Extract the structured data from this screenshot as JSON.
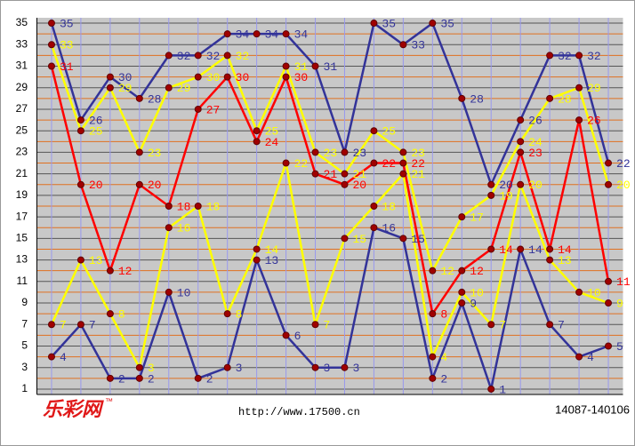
{
  "chart_data": {
    "type": "line",
    "categories": [
      null,
      null,
      null,
      null,
      null,
      null,
      null,
      null,
      null,
      null,
      null,
      null,
      null,
      null,
      null,
      null,
      null,
      null,
      null,
      null
    ],
    "series": [
      {
        "color": "#333399",
        "values": [
          35,
          26,
          30,
          28,
          32,
          32,
          34,
          34,
          34,
          31,
          23,
          35,
          33,
          35,
          28,
          20,
          26,
          32,
          32,
          22
        ]
      },
      {
        "color": "#ffff00",
        "values": [
          33,
          25,
          29,
          23,
          29,
          30,
          32,
          25,
          31,
          23,
          21,
          25,
          23,
          12,
          17,
          19,
          24,
          28,
          29,
          20
        ]
      },
      {
        "color": "#ff0000",
        "values": [
          31,
          20,
          12,
          20,
          18,
          27,
          30,
          24,
          30,
          21,
          20,
          22,
          22,
          8,
          12,
          14,
          23,
          14,
          26,
          11
        ]
      },
      {
        "color": "#ffff00",
        "values": [
          7,
          13,
          8,
          3,
          16,
          18,
          8,
          14,
          22,
          7,
          15,
          18,
          21,
          4,
          10,
          7,
          20,
          13,
          10,
          9
        ]
      },
      {
        "color": "#333399",
        "values": [
          4,
          7,
          2,
          2,
          10,
          2,
          3,
          13,
          6,
          3,
          3,
          16,
          15,
          2,
          9,
          1,
          14,
          7,
          4,
          5
        ]
      }
    ],
    "ylim": [
      0.5,
      35.5
    ],
    "yticks": [
      1,
      3,
      5,
      7,
      9,
      11,
      13,
      15,
      17,
      19,
      21,
      23,
      25,
      27,
      29,
      31,
      33,
      35
    ],
    "grid": true,
    "footer": {
      "logo": "乐彩网",
      "trademark": "™",
      "url": "http://www.17500.cn",
      "range": "14087-140106"
    }
  }
}
